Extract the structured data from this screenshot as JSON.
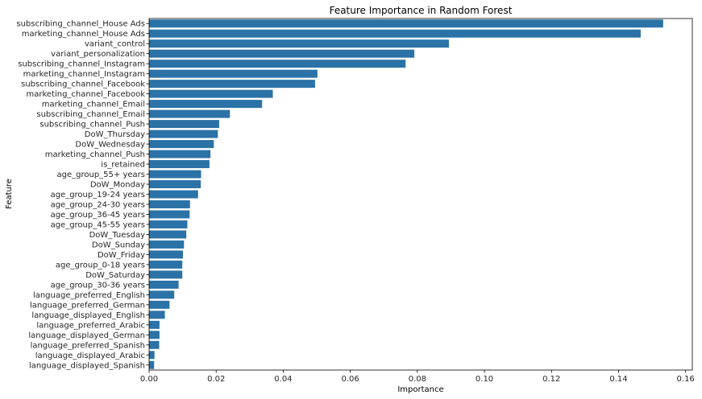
{
  "chart_data": {
    "type": "bar",
    "orientation": "horizontal",
    "title": "Feature Importance in Random Forest",
    "xlabel": "Importance",
    "ylabel": "Feature",
    "xlim": [
      0,
      0.162
    ],
    "xticks": [
      "0.00",
      "0.02",
      "0.04",
      "0.06",
      "0.08",
      "0.10",
      "0.12",
      "0.14",
      "0.16"
    ],
    "xtick_values": [
      0,
      0.02,
      0.04,
      0.06,
      0.08,
      0.1,
      0.12,
      0.14,
      0.16
    ],
    "bar_color": "#2b72a6",
    "grid": false,
    "categories": [
      "subscribing_channel_House Ads",
      "marketing_channel_House Ads",
      "variant_control",
      "variant_personalization",
      "subscribing_channel_Instagram",
      "marketing_channel_Instagram",
      "subscribing_channel_Facebook",
      "marketing_channel_Facebook",
      "marketing_channel_Email",
      "subscribing_channel_Email",
      "subscribing_channel_Push",
      "DoW_Thursday",
      "DoW_Wednesday",
      "marketing_channel_Push",
      "is_retained",
      "age_group_55+ years",
      "DoW_Monday",
      "age_group_19-24 years",
      "age_group_24-30 years",
      "age_group_36-45 years",
      "age_group_45-55 years",
      "DoW_Tuesday",
      "DoW_Sunday",
      "DoW_Friday",
      "age_group_0-18 years",
      "DoW_Saturday",
      "age_group_30-36 years",
      "language_preferred_English",
      "language_preferred_German",
      "language_displayed_English",
      "language_preferred_Arabic",
      "language_displayed_German",
      "language_preferred_Spanish",
      "language_displayed_Arabic",
      "language_displayed_Spanish"
    ],
    "values": [
      0.1533,
      0.1466,
      0.0894,
      0.0791,
      0.0765,
      0.0502,
      0.0495,
      0.0369,
      0.0337,
      0.0241,
      0.0209,
      0.0205,
      0.0193,
      0.0183,
      0.018,
      0.0155,
      0.0154,
      0.0146,
      0.0122,
      0.0121,
      0.0114,
      0.0111,
      0.0104,
      0.0101,
      0.0099,
      0.0099,
      0.0088,
      0.0075,
      0.0061,
      0.0047,
      0.0031,
      0.0031,
      0.003,
      0.0016,
      0.0015
    ]
  }
}
